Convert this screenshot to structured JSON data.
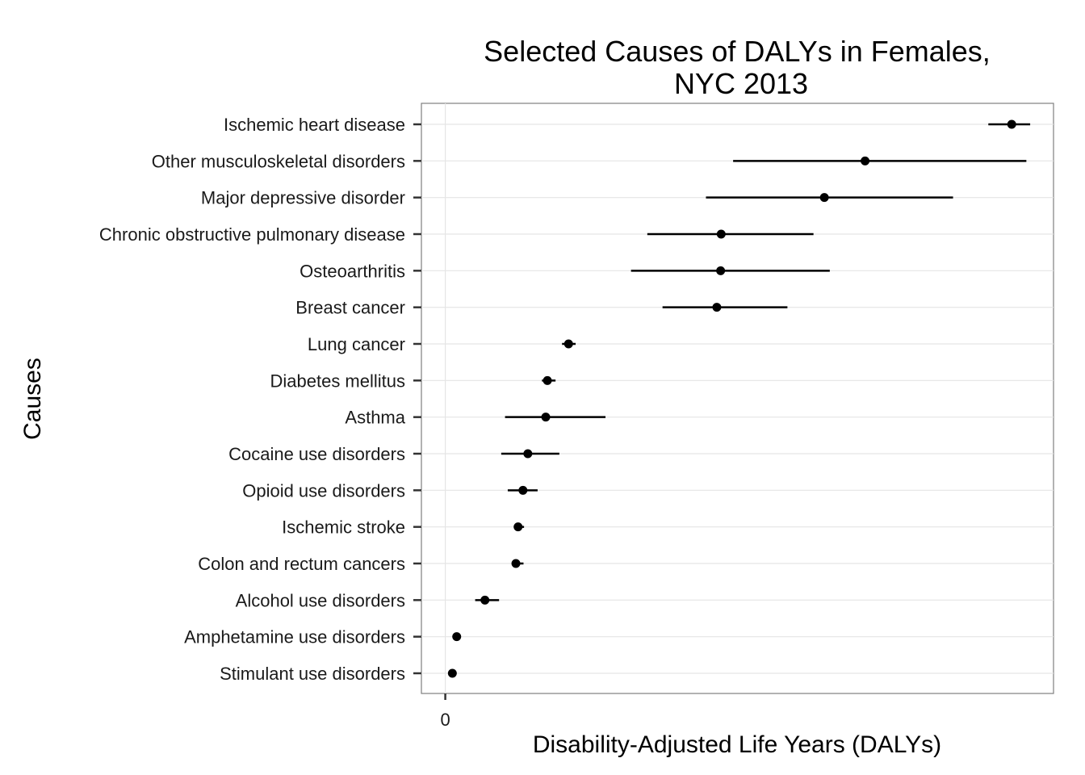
{
  "chart_data": {
    "type": "scatter",
    "title_lines": [
      "Selected Causes of DALYs in Females,",
      "NYC 2013"
    ],
    "xlabel": "Disability-Adjusted Life Years (DALYs)",
    "ylabel": "Causes",
    "x_ticks": [
      {
        "value": 0,
        "label": "0"
      }
    ],
    "xlim": [
      -4.4,
      112
    ],
    "grid": true,
    "causes": [
      {
        "label": "Ischemic heart disease",
        "value": 104.3,
        "low": 100.0,
        "high": 107.7
      },
      {
        "label": "Other musculoskeletal disorders",
        "value": 77.3,
        "low": 53.0,
        "high": 107.0
      },
      {
        "label": "Major depressive disorder",
        "value": 69.8,
        "low": 48.0,
        "high": 93.5
      },
      {
        "label": "Chronic obstructive pulmonary disease",
        "value": 50.8,
        "low": 37.2,
        "high": 67.8
      },
      {
        "label": "Osteoarthritis",
        "value": 50.7,
        "low": 34.2,
        "high": 70.8
      },
      {
        "label": "Breast cancer",
        "value": 50.0,
        "low": 40.0,
        "high": 63.0
      },
      {
        "label": "Lung cancer",
        "value": 22.7,
        "low": 21.5,
        "high": 24.0
      },
      {
        "label": "Diabetes mellitus",
        "value": 18.8,
        "low": 17.8,
        "high": 20.3
      },
      {
        "label": "Asthma",
        "value": 18.5,
        "low": 11.0,
        "high": 29.5
      },
      {
        "label": "Cocaine use disorders",
        "value": 15.2,
        "low": 10.3,
        "high": 21.0
      },
      {
        "label": "Opioid use disorders",
        "value": 14.3,
        "low": 11.5,
        "high": 17.0
      },
      {
        "label": "Ischemic stroke",
        "value": 13.4,
        "low": 12.7,
        "high": 14.5
      },
      {
        "label": "Colon and rectum cancers",
        "value": 13.0,
        "low": 12.3,
        "high": 14.4
      },
      {
        "label": "Alcohol use disorders",
        "value": 7.3,
        "low": 5.5,
        "high": 9.9
      },
      {
        "label": "Amphetamine use disorders",
        "value": 2.1,
        "low": 1.8,
        "high": 2.4
      },
      {
        "label": "Stimulant use disorders",
        "value": 1.3,
        "low": 1.0,
        "high": 1.6
      }
    ]
  }
}
